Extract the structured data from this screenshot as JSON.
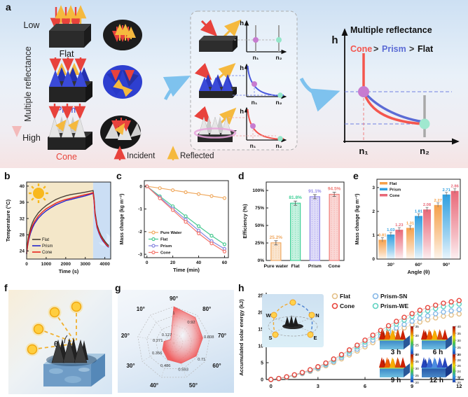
{
  "panels": {
    "a": {
      "label": "a",
      "left": {
        "low": "Low",
        "high": "High",
        "axis_title": "Multiple reflectance",
        "flat": "Flat",
        "prism": "Prism",
        "cone": "Cone"
      },
      "legend": {
        "incident": "Incident",
        "reflected": "Reflected"
      },
      "mini": {
        "h": "h",
        "n1": "n₁",
        "n2": "n₂"
      },
      "right_plot": {
        "title": "Multiple reflectance",
        "h": "h",
        "n1": "n₁",
        "n2": "n₂",
        "rank_cone": "Cone",
        "rank_gt1": ">",
        "rank_prism": "Prism",
        "rank_gt2": ">",
        "rank_flat": "Flat"
      }
    },
    "b": {
      "label": "b"
    },
    "c": {
      "label": "c"
    },
    "d": {
      "label": "d"
    },
    "e": {
      "label": "e"
    },
    "f": {
      "label": "f",
      "theta": "θ"
    },
    "g": {
      "label": "g"
    },
    "h": {
      "label": "h"
    }
  },
  "chart_data": [
    {
      "id": "b",
      "type": "line",
      "xlabel": "Time (s)",
      "ylabel": "Temperature (°C)",
      "xlim": [
        0,
        4300
      ],
      "ylim": [
        22,
        41
      ],
      "xticks": [
        0,
        1000,
        2000,
        3000,
        4000
      ],
      "yticks": [
        24,
        28,
        32,
        36,
        40
      ],
      "day_region": [
        0,
        3400
      ],
      "night_region": [
        3400,
        4300
      ],
      "x": [
        0,
        50,
        100,
        200,
        300,
        400,
        600,
        800,
        1000,
        1250,
        1500,
        1750,
        2000,
        2250,
        2500,
        2750,
        3000,
        3200,
        3400,
        3450,
        3500,
        3600,
        3700,
        3800,
        3900,
        4000,
        4100,
        4200
      ],
      "series": [
        {
          "name": "Flat",
          "color": "#4a4136",
          "y": [
            23.4,
            26,
            27.6,
            29.6,
            31,
            32,
            33.4,
            34.4,
            35.2,
            36,
            36.7,
            37.2,
            37.6,
            37.9,
            38.1,
            38.3,
            38.5,
            38.7,
            38.9,
            37,
            33.5,
            30.5,
            29,
            27.9,
            27.1,
            26.4,
            25.8,
            25.3
          ]
        },
        {
          "name": "Prism",
          "color": "#2525cc",
          "y": [
            23.2,
            25.2,
            26.6,
            28.4,
            29.7,
            30.7,
            32.1,
            33.1,
            33.9,
            34.7,
            35.4,
            35.9,
            36.4,
            36.7,
            37,
            37.3,
            37.6,
            37.9,
            38.2,
            36.3,
            32.8,
            29.8,
            28.4,
            27.3,
            26.5,
            25.9,
            25.3,
            24.9
          ]
        },
        {
          "name": "Cone",
          "color": "#e8231c",
          "y": [
            23.3,
            25.5,
            27,
            28.9,
            30.2,
            31.2,
            32.6,
            33.6,
            34.4,
            35.1,
            35.8,
            36.3,
            36.7,
            37,
            37.3,
            37.6,
            37.9,
            38.1,
            38.4,
            36.5,
            33,
            30,
            28.6,
            27.5,
            26.7,
            26,
            25.4,
            25
          ]
        }
      ]
    },
    {
      "id": "c",
      "type": "line",
      "xlabel": "Time (min)",
      "ylabel": "Mass change (kg m⁻²)",
      "xlim": [
        -2,
        63
      ],
      "ylim": [
        -3.15,
        0.25
      ],
      "xticks": [
        0,
        20,
        40,
        60
      ],
      "yticks": [
        0,
        -1,
        -2,
        -3
      ],
      "x": [
        0,
        10,
        20,
        30,
        40,
        50,
        60
      ],
      "series": [
        {
          "name": "Pure Water",
          "color": "#f0aa60",
          "y": [
            0,
            -0.08,
            -0.17,
            -0.26,
            -0.34,
            -0.43,
            -0.52
          ]
        },
        {
          "name": "Flat",
          "color": "#45c88f",
          "y": [
            0,
            -0.44,
            -0.88,
            -1.32,
            -1.76,
            -2.18,
            -2.56
          ]
        },
        {
          "name": "Prism",
          "color": "#8585e0",
          "y": [
            0,
            -0.49,
            -0.98,
            -1.47,
            -1.95,
            -2.42,
            -2.76
          ]
        },
        {
          "name": "Cone",
          "color": "#f4776e",
          "y": [
            0,
            -0.53,
            -1.05,
            -1.57,
            -2.08,
            -2.52,
            -2.88
          ]
        }
      ]
    },
    {
      "id": "d",
      "type": "bar",
      "ylabel": "Efficiency (%)",
      "categories": [
        "Pure water",
        "Flat",
        "Prism",
        "Cone"
      ],
      "values": [
        25.2,
        81.8,
        91.1,
        94.5
      ],
      "value_labels": [
        "25.2%",
        "81.8%",
        "91.1%",
        "94.5%"
      ],
      "colors": [
        "#f0a860",
        "#3ecf96",
        "#9288e8",
        "#f07a75"
      ],
      "yticks": [
        0,
        25,
        50,
        75,
        100
      ],
      "ytick_labels": [
        "0%",
        "25%",
        "50%",
        "75%",
        "100%"
      ],
      "ylim": [
        0,
        112
      ]
    },
    {
      "id": "e",
      "type": "grouped-bar",
      "ylabel": "Mass change (kg m⁻²)",
      "xlabel": "Angle (θ)",
      "categories": [
        "30°",
        "60°",
        "90°"
      ],
      "yticks": [
        0,
        1,
        2,
        3
      ],
      "ylim": [
        0,
        3.35
      ],
      "series": [
        {
          "name": "Flat",
          "color": "#f5a04a",
          "values": [
            0.81,
            1.31,
            2.27
          ]
        },
        {
          "name": "Prism",
          "color": "#2f9fe0",
          "values": [
            1.03,
            1.81,
            2.71
          ]
        },
        {
          "name": "Cone",
          "color": "#e86878",
          "values": [
            1.23,
            2.08,
            2.86
          ]
        }
      ]
    },
    {
      "id": "g",
      "type": "radar",
      "axes": [
        "90°",
        "80°",
        "70°",
        "60°",
        "50°",
        "40°",
        "30°",
        "20°",
        "10°"
      ],
      "values": [
        1,
        0.92,
        0.808,
        0.71,
        0.593,
        0.486,
        0.356,
        0.271,
        0.127
      ],
      "value_labels": [
        "1",
        "0.92",
        "0.808",
        "0.71",
        "0.593",
        "0.486",
        "0.356",
        "0.271",
        "0.127"
      ],
      "max": 1.0,
      "rings": 4,
      "fill_color": "#f25050"
    },
    {
      "id": "h",
      "type": "scatter-line",
      "ylabel": "Accumulated solar energy (kJ)",
      "xlim": [
        -0.3,
        12.3
      ],
      "ylim": [
        0,
        25
      ],
      "xticks": [
        0,
        3,
        6,
        9,
        12
      ],
      "yticks": [
        0,
        5,
        10,
        15,
        20,
        25
      ],
      "x": [
        0,
        0.5,
        1,
        1.5,
        2,
        2.5,
        3,
        3.5,
        4,
        4.5,
        5,
        5.5,
        6,
        6.5,
        7,
        7.5,
        8,
        8.5,
        9,
        9.5,
        10,
        10.5,
        11,
        11.5,
        12
      ],
      "series": [
        {
          "name": "Flat",
          "color": "#e4c088",
          "y": [
            0,
            0.25,
            0.66,
            1.16,
            1.74,
            2.41,
            3.15,
            4.07,
            5.06,
            6.14,
            7.3,
            8.47,
            9.71,
            10.96,
            12.12,
            13.28,
            14.36,
            15.36,
            16.27,
            17.1,
            17.76,
            18.34,
            18.84,
            19.17,
            19.5
          ]
        },
        {
          "name": "Cone",
          "color": "#e8453c",
          "y": [
            0,
            0.3,
            0.8,
            1.4,
            2.1,
            2.9,
            3.8,
            4.9,
            6.1,
            7.4,
            8.8,
            10.2,
            11.7,
            13.2,
            14.6,
            16.0,
            17.3,
            18.5,
            19.6,
            20.6,
            21.4,
            22.1,
            22.7,
            23.1,
            23.5
          ]
        },
        {
          "name": "Prism-SN",
          "color": "#85b8e8",
          "y": [
            0,
            0.27,
            0.71,
            1.24,
            1.86,
            2.57,
            3.36,
            4.34,
            5.4,
            6.55,
            7.79,
            9.03,
            10.35,
            11.68,
            12.92,
            14.16,
            15.31,
            16.37,
            17.35,
            18.23,
            18.94,
            19.56,
            20.09,
            20.44,
            20.8
          ]
        },
        {
          "name": "Prism-WE",
          "color": "#5ed2c2",
          "y": [
            0,
            0.29,
            0.76,
            1.34,
            2.01,
            2.77,
            3.63,
            4.68,
            5.83,
            7.07,
            8.4,
            9.74,
            11.17,
            12.61,
            13.94,
            15.28,
            16.52,
            17.67,
            18.72,
            19.67,
            20.44,
            21.11,
            21.68,
            22.06,
            22.44
          ]
        }
      ],
      "insets": {
        "compass": {
          "w": "W",
          "n": "N",
          "s": "S",
          "e": "E"
        },
        "surfaces": [
          {
            "label": "3 h",
            "style": "hot",
            "colorbar_ticks": [
              35,
              30,
              25,
              20
            ]
          },
          {
            "label": "6 h",
            "style": "hot",
            "colorbar_ticks": [
              40,
              35,
              30,
              25,
              20
            ]
          },
          {
            "label": "9 h",
            "style": "hot",
            "colorbar_ticks": [
              40,
              35,
              30,
              25,
              20
            ]
          },
          {
            "label": "12 h",
            "style": "cool",
            "colorbar_ticks": [
              30,
              28,
              26,
              24,
              22,
              20
            ]
          }
        ]
      }
    }
  ]
}
